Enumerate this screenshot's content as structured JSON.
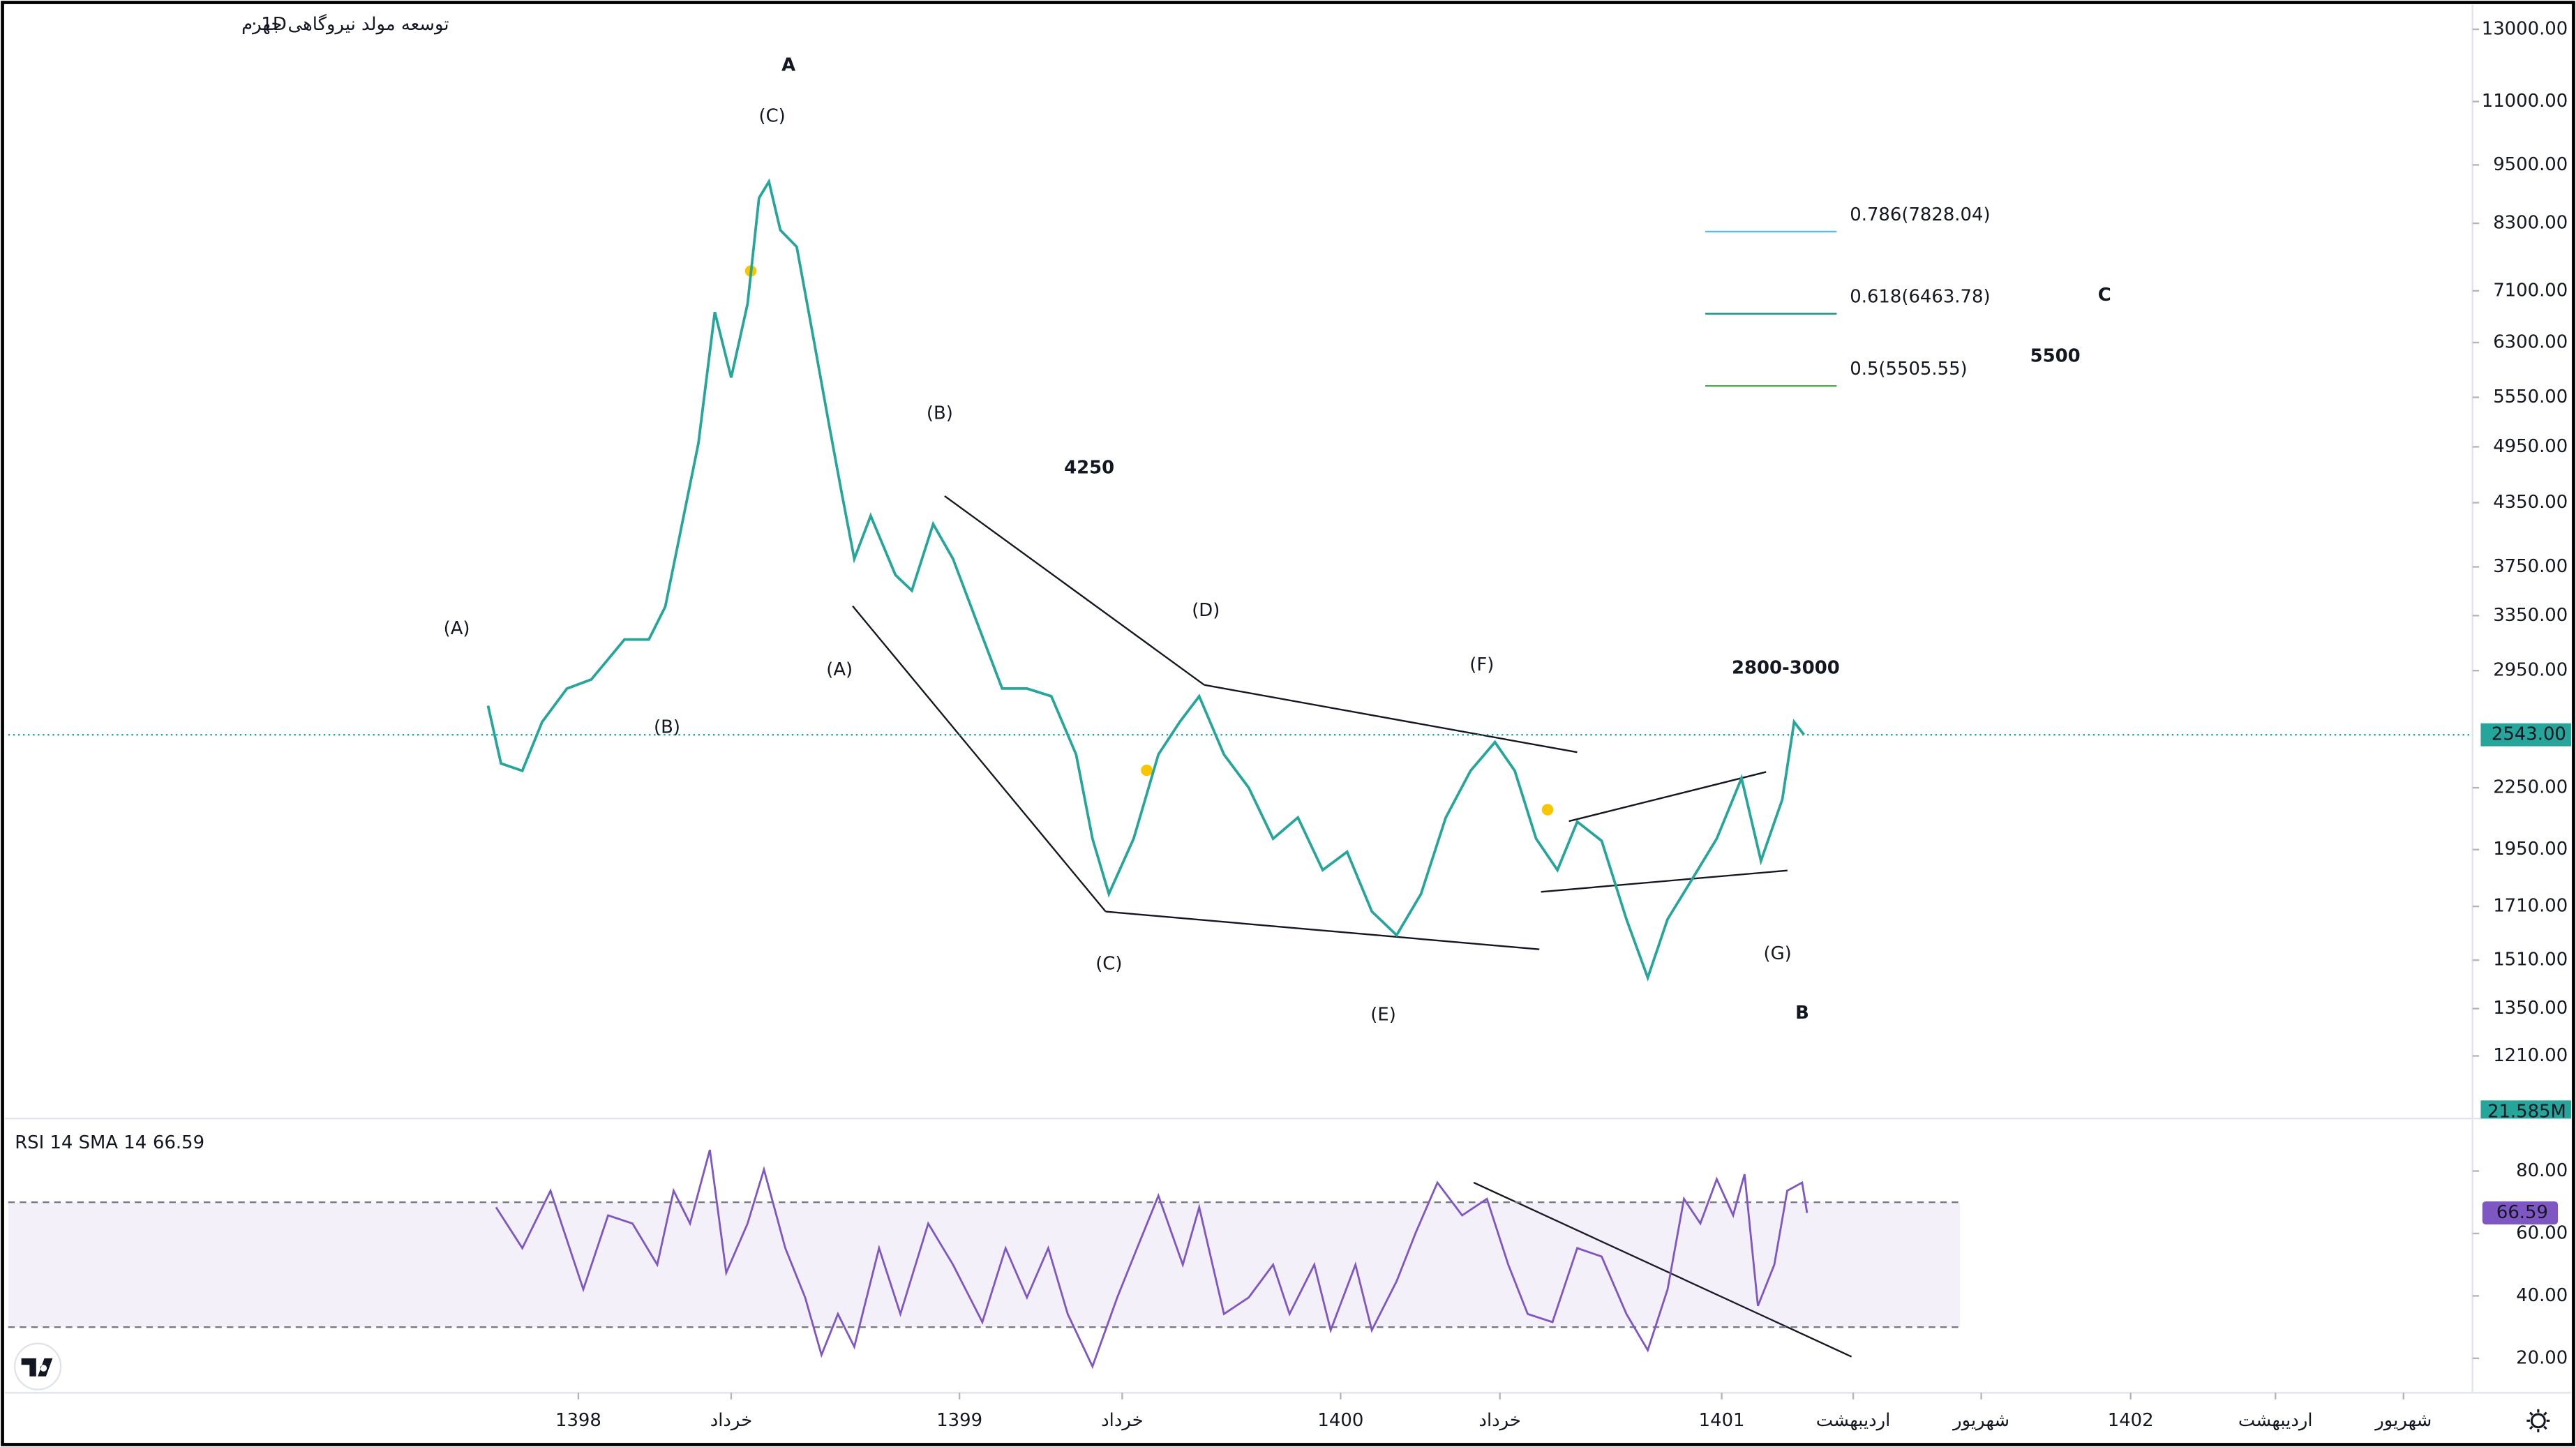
{
  "symbol": "توسعه مولد نیروگاهی جهرم",
  "interval": "1D",
  "chart_data": [
    {
      "type": "line",
      "log_scale": true,
      "xlim": [
        1396.504,
        1402.97
      ],
      "ylim": [
        1047,
        13650
      ],
      "yticks": [
        {
          "value": 13000,
          "label": "13000.00"
        },
        {
          "value": 11000,
          "label": "11000.00"
        },
        {
          "value": 9500,
          "label": "9500.00"
        },
        {
          "value": 8300,
          "label": "8300.00"
        },
        {
          "value": 7100,
          "label": "7100.00"
        },
        {
          "value": 6300,
          "label": "6300.00"
        },
        {
          "value": 5550,
          "label": "5550.00"
        },
        {
          "value": 4950,
          "label": "4950.00"
        },
        {
          "value": 4350,
          "label": "4350.00"
        },
        {
          "value": 3750,
          "label": "3750.00"
        },
        {
          "value": 3350,
          "label": "3350.00"
        },
        {
          "value": 2950,
          "label": "2950.00"
        },
        {
          "value": 2250,
          "label": "2250.00"
        },
        {
          "value": 1950,
          "label": "1950.00"
        },
        {
          "value": 1710,
          "label": "1710.00"
        },
        {
          "value": 1510,
          "label": "1510.00"
        },
        {
          "value": 1350,
          "label": "1350.00"
        },
        {
          "value": 1210,
          "label": "1210.00"
        }
      ],
      "last_price": {
        "value": 2543,
        "label": "2543.00",
        "color": "#26a69a"
      },
      "volume_label": "21.585M",
      "series": [
        {
          "color": "#26a69a",
          "x": [
            1397.763,
            1397.797,
            1397.853,
            1397.905,
            1397.97,
            1398.034,
            1398.121,
            1398.185,
            1398.228,
            1398.272,
            1398.315,
            1398.358,
            1398.401,
            1398.444,
            1398.474,
            1398.5,
            1398.53,
            1398.573,
            1398.616,
            1398.659,
            1398.69,
            1398.724,
            1398.767,
            1398.832,
            1398.875,
            1398.931,
            1398.983,
            1399.047,
            1399.112,
            1399.177,
            1399.241,
            1399.306,
            1399.349,
            1399.392,
            1399.457,
            1399.522,
            1399.578,
            1399.629,
            1399.694,
            1399.759,
            1399.823,
            1399.888,
            1399.953,
            1400.017,
            1400.082,
            1400.147,
            1400.211,
            1400.276,
            1400.341,
            1400.405,
            1400.457,
            1400.513,
            1400.569,
            1400.621,
            1400.685,
            1400.75,
            1400.806,
            1400.858,
            1400.922,
            1400.987,
            1401.052,
            1401.103,
            1401.159,
            1401.19,
            1401.216
          ],
          "values": [
            2720,
            2380,
            2340,
            2620,
            2830,
            2890,
            3170,
            3170,
            3420,
            4140,
            4990,
            6760,
            5810,
            6890,
            8800,
            9140,
            8170,
            7860,
            6390,
            5180,
            4470,
            3820,
            4220,
            3680,
            3550,
            4140,
            3820,
            3290,
            2830,
            2830,
            2780,
            2430,
            2000,
            1760,
            2000,
            2430,
            2620,
            2780,
            2430,
            2250,
            2000,
            2100,
            1860,
            1940,
            1690,
            1600,
            1760,
            2100,
            2340,
            2500,
            2340,
            2000,
            1860,
            2080,
            1990,
            1660,
            1450,
            1660,
            1820,
            2000,
            2300,
            1900,
            2190,
            2620,
            2543
          ]
        }
      ],
      "fib_levels": [
        {
          "label": "0.786(7828.04)",
          "color": "#64b5f6"
        },
        {
          "label": "0.618(6463.78)",
          "color": "#089981"
        },
        {
          "label": "0.5(5505.55)",
          "color": "#4caf50"
        }
      ],
      "annotations": [
        {
          "text": "A",
          "color": "#000000"
        },
        {
          "text": "(C)",
          "color": "#4caf50"
        },
        {
          "text": "(A)",
          "color": "#4caf50"
        },
        {
          "text": "(B)",
          "color": "#4caf50"
        },
        {
          "text": "(B)",
          "color": "#5b9bd5"
        },
        {
          "text": "(A)",
          "color": "#5b9bd5"
        },
        {
          "text": "4250",
          "color": "#000000"
        },
        {
          "text": "(D)",
          "color": "#5b9bd5"
        },
        {
          "text": "(C)",
          "color": "#5b9bd5"
        },
        {
          "text": "(E)",
          "color": "#5b9bd5"
        },
        {
          "text": "(F)",
          "color": "#5b9bd5"
        },
        {
          "text": "2800-3000",
          "color": "#000000"
        },
        {
          "text": "(G)",
          "color": "#5b9bd5"
        },
        {
          "text": "B",
          "color": "#000000"
        },
        {
          "text": "C",
          "color": "#000000"
        },
        {
          "text": "5500",
          "color": "#000000"
        }
      ]
    },
    {
      "type": "line",
      "title": "RSI 14 SMA 14",
      "xlim": [
        1396.504,
        1402.97
      ],
      "ylim": [
        8.95,
        95.26
      ],
      "yticks": [
        {
          "value": 80,
          "label": "80.00"
        },
        {
          "value": 60,
          "label": "60.00"
        },
        {
          "value": 40,
          "label": "40.00"
        },
        {
          "value": 20,
          "label": "20.00"
        }
      ],
      "band": [
        30,
        70
      ],
      "last_label": {
        "value": 66.59,
        "label": "66.59",
        "color": "#7e57c2"
      },
      "xticks": [
        {
          "value": 1398,
          "label": "1398"
        },
        {
          "value": 1398.401,
          "label": "خرداد"
        },
        {
          "value": 1399,
          "label": "1399"
        },
        {
          "value": 1399.427,
          "label": "خرداد"
        },
        {
          "value": 1400,
          "label": "1400"
        },
        {
          "value": 1400.418,
          "label": "خرداد"
        },
        {
          "value": 1401,
          "label": "1401"
        },
        {
          "value": 1401.345,
          "label": "اردیبهشت"
        },
        {
          "value": 1401.681,
          "label": "شهریور"
        },
        {
          "value": 1402.073,
          "label": "1402"
        },
        {
          "value": 1402.453,
          "label": "اردیبهشت"
        },
        {
          "value": 1402.789,
          "label": "شهریور"
        }
      ],
      "series": [
        {
          "color": "#7e57c2",
          "x": [
            1397.784,
            1397.853,
            1397.927,
            1398.013,
            1398.078,
            1398.142,
            1398.207,
            1398.25,
            1398.293,
            1398.345,
            1398.388,
            1398.444,
            1398.487,
            1398.543,
            1398.595,
            1398.638,
            1398.681,
            1398.724,
            1398.789,
            1398.845,
            1398.918,
            1398.983,
            1399.06,
            1399.121,
            1399.177,
            1399.233,
            1399.284,
            1399.349,
            1399.414,
            1399.466,
            1399.522,
            1399.586,
            1399.629,
            1399.694,
            1399.759,
            1399.823,
            1399.866,
            1399.931,
            1399.974,
            1400.039,
            1400.082,
            1400.147,
            1400.198,
            1400.254,
            1400.319,
            1400.384,
            1400.44,
            1400.491,
            1400.556,
            1400.621,
            1400.685,
            1400.75,
            1400.806,
            1400.858,
            1400.901,
            1400.944,
            1400.987,
            1401.03,
            1401.06,
            1401.095,
            1401.138,
            1401.172,
            1401.211,
            1401.224
          ],
          "values": [
            68.4,
            55.3,
            73.7,
            42.1,
            65.8,
            63.2,
            50,
            73.7,
            63.2,
            86.8,
            47.4,
            63.2,
            80.5,
            55.3,
            39.5,
            21.1,
            34.2,
            23.7,
            55.3,
            34.2,
            63.2,
            50,
            31.6,
            55.3,
            39.5,
            55.3,
            34.2,
            17.4,
            39.5,
            55.3,
            72.1,
            50,
            68.4,
            34.2,
            39.5,
            50,
            34.2,
            50,
            29,
            50,
            29,
            44.7,
            60.5,
            76.3,
            65.8,
            71.1,
            50,
            34.2,
            31.6,
            55.3,
            52.6,
            34.2,
            22.6,
            42.1,
            71.1,
            63.2,
            77.4,
            65.8,
            79,
            36.8,
            50,
            73.7,
            76.3,
            66.59
          ]
        }
      ]
    }
  ]
}
